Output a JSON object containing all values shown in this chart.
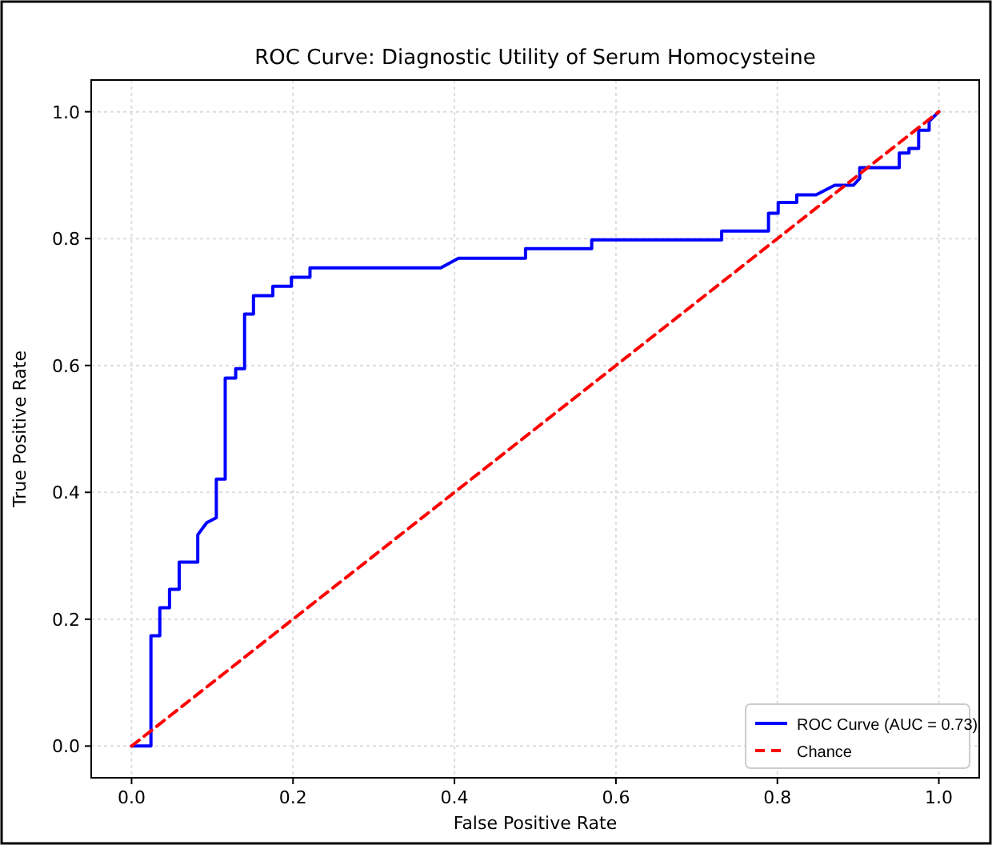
{
  "chart_data": {
    "type": "line",
    "title": "ROC Curve: Diagnostic Utility of Serum Homocysteine",
    "xlabel": "False Positive Rate",
    "ylabel": "True Positive Rate",
    "xlim": [
      -0.05,
      1.05
    ],
    "ylim": [
      -0.05,
      1.05
    ],
    "xticks": [
      {
        "value": 0,
        "label": "0.0"
      },
      {
        "value": 0.2,
        "label": "0.2"
      },
      {
        "value": 0.4,
        "label": "0.4"
      },
      {
        "value": 0.6,
        "label": "0.6"
      },
      {
        "value": 0.8,
        "label": "0.8"
      },
      {
        "value": 1,
        "label": "1.0"
      }
    ],
    "yticks": [
      {
        "value": 0,
        "label": "0.0"
      },
      {
        "value": 0.2,
        "label": "0.2"
      },
      {
        "value": 0.4,
        "label": "0.4"
      },
      {
        "value": 0.6,
        "label": "0.6"
      },
      {
        "value": 0.8,
        "label": "0.8"
      },
      {
        "value": 1,
        "label": "1.0"
      }
    ],
    "grid": true,
    "legend": "bottom right",
    "marker": "none",
    "series": [
      {
        "name": "ROC Curve (AUC = 0.73)",
        "color": "#0000ff",
        "line_style": "solid",
        "x": [
          0,
          0.024,
          0.024,
          0.035,
          0.035,
          0.047,
          0.047,
          0.059,
          0.059,
          0.082,
          0.082,
          0.093,
          0.105,
          0.105,
          0.116,
          0.116,
          0.129,
          0.129,
          0.14,
          0.14,
          0.151,
          0.151,
          0.175,
          0.175,
          0.198,
          0.198,
          0.221,
          0.221,
          0.383,
          0.405,
          0.488,
          0.488,
          0.57,
          0.57,
          0.731,
          0.731,
          0.789,
          0.789,
          0.801,
          0.801,
          0.824,
          0.824,
          0.848,
          0.871,
          0.894,
          0.902,
          0.902,
          0.951,
          0.951,
          0.963,
          0.963,
          0.975,
          0.975,
          0.988,
          0.988,
          1
        ],
        "values": [
          0,
          0,
          0.174,
          0.174,
          0.218,
          0.218,
          0.247,
          0.247,
          0.29,
          0.29,
          0.333,
          0.352,
          0.36,
          0.421,
          0.421,
          0.58,
          0.58,
          0.595,
          0.595,
          0.681,
          0.681,
          0.71,
          0.71,
          0.725,
          0.725,
          0.739,
          0.739,
          0.754,
          0.754,
          0.769,
          0.769,
          0.784,
          0.784,
          0.798,
          0.798,
          0.812,
          0.812,
          0.84,
          0.84,
          0.857,
          0.857,
          0.869,
          0.869,
          0.884,
          0.884,
          0.895,
          0.912,
          0.912,
          0.935,
          0.935,
          0.942,
          0.942,
          0.971,
          0.971,
          0.985,
          1
        ]
      },
      {
        "name": "Chance",
        "color": "#ff0000",
        "line_style": "dashed",
        "x": [
          0,
          1
        ],
        "values": [
          0,
          1
        ]
      }
    ]
  }
}
